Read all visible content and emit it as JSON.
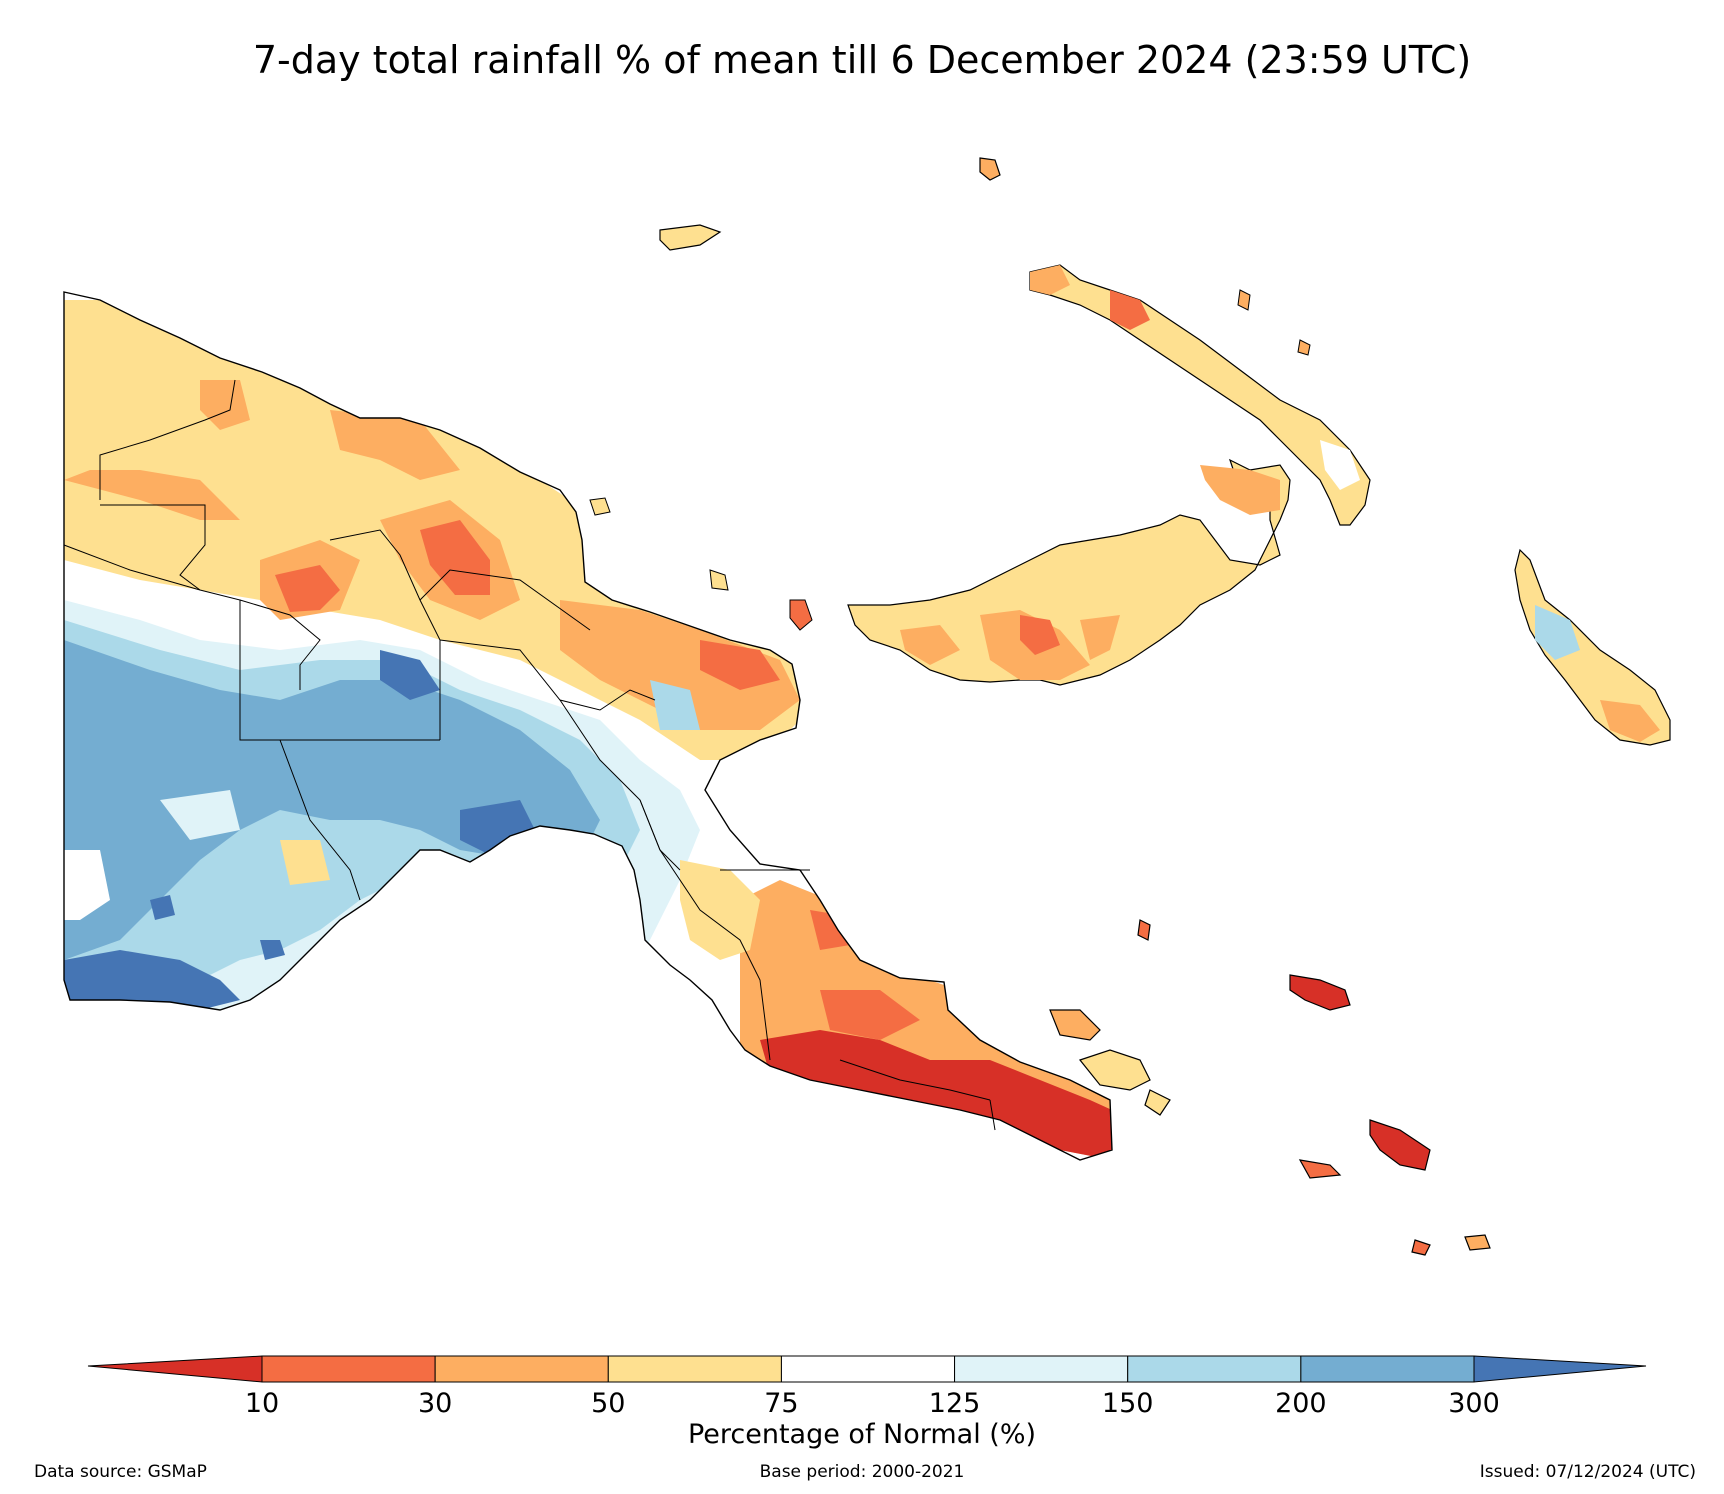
{
  "title": "7-day total rainfall % of mean till 6 December 2024 (23:59 UTC)",
  "colorbar": {
    "title": "Percentage of Normal (%)",
    "ticks": [
      "10",
      "30",
      "50",
      "75",
      "125",
      "150",
      "200",
      "300"
    ],
    "under_color": "#d73027",
    "over_color": "#4575b4",
    "bins": [
      {
        "range": "10-30",
        "color": "#f46d43"
      },
      {
        "range": "30-50",
        "color": "#fdae61"
      },
      {
        "range": "50-75",
        "color": "#fee090"
      },
      {
        "range": "75-125",
        "color": "#ffffff"
      },
      {
        "range": "125-150",
        "color": "#e0f3f8"
      },
      {
        "range": "150-200",
        "color": "#abd9e9"
      },
      {
        "range": "200-300",
        "color": "#74add1"
      }
    ]
  },
  "footer": {
    "source": "Data source: GSMaP",
    "base_period": "Base period: 2000-2021",
    "issued": "Issued: 07/12/2024 (UTC)"
  }
}
